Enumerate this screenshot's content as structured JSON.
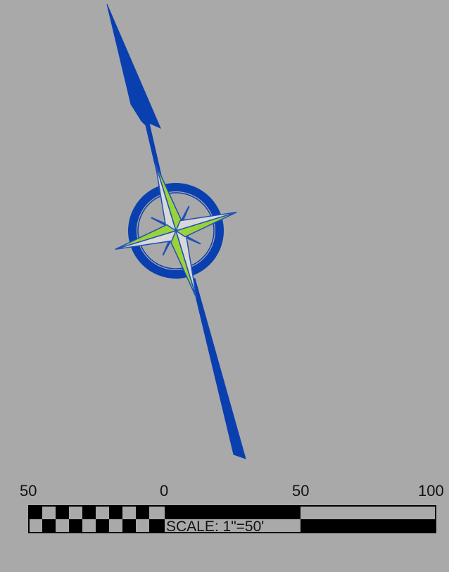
{
  "compass": {
    "icon": "compass-rose-north-arrow-icon",
    "colors": {
      "ring": "#0a3fb0",
      "petal_fill": "#9ad23a",
      "petal_outline": "#1f4fb8",
      "arrow": "#0a3fb0"
    }
  },
  "scale_bar": {
    "ticks": [
      "50",
      "0",
      "50",
      "100"
    ],
    "caption": "SCALE: 1\"=50'",
    "colors": {
      "dark": "#000000",
      "light": "#a9a9a9",
      "border": "#000000"
    }
  },
  "background_color": "#a9a9a9"
}
